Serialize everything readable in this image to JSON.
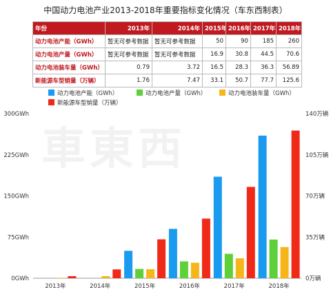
{
  "title": "中国动力电池产业2013-2018年重要指标变化情况（车东西制表）",
  "watermark": "車東西",
  "table": {
    "corner": "年份",
    "years": [
      "2013年",
      "2014年",
      "2015年",
      "2016年",
      "2017年",
      "2018年"
    ],
    "rows": [
      {
        "label": "动力电池产能（GWh）",
        "cells": [
          "暂无可参考数据",
          "暂无可参考数据",
          "50",
          "90",
          "185",
          "260"
        ]
      },
      {
        "label": "动力电池产量（GWh）",
        "cells": [
          "暂无可参考数据",
          "暂无可参考数据",
          "16.9",
          "30.8",
          "44.5",
          "70.6"
        ]
      },
      {
        "label": "动力电池装车量（GWh）",
        "cells": [
          "0.79",
          "3.72",
          "16.5",
          "28.3",
          "36.3",
          "56.89"
        ]
      },
      {
        "label": "新能源车型销量（万辆）",
        "cells": [
          "1.76",
          "7.47",
          "33.1",
          "50.7",
          "77.7",
          "125.6"
        ]
      }
    ]
  },
  "colors": {
    "blue": "#1a9bf0",
    "green": "#5fd03a",
    "orange": "#f6b61a",
    "red": "#f02a19",
    "header": "#c0191f"
  },
  "chart_data": {
    "type": "bar",
    "categories": [
      "2013年",
      "2014年",
      "2015年",
      "2016年",
      "2017年",
      "2018年"
    ],
    "series": [
      {
        "name": "动力电池产能（GWh）",
        "axis": "left",
        "color": "#1a9bf0",
        "values": [
          null,
          null,
          50,
          90,
          185,
          260
        ]
      },
      {
        "name": "动力电池产量（GWh）",
        "axis": "left",
        "color": "#5fd03a",
        "values": [
          null,
          null,
          16.9,
          30.8,
          44.5,
          70.6
        ]
      },
      {
        "name": "动力电池装车量（GWh）",
        "axis": "left",
        "color": "#f6b61a",
        "values": [
          0.79,
          3.72,
          16.5,
          28.3,
          36.3,
          56.89
        ]
      },
      {
        "name": "新能源车型销量（万辆）",
        "axis": "right",
        "color": "#f02a19",
        "values": [
          1.76,
          7.47,
          33.1,
          50.7,
          77.7,
          125.6
        ]
      }
    ],
    "y_left": {
      "ylim": [
        0,
        300
      ],
      "ticks": [
        0,
        75,
        150,
        225,
        300
      ],
      "tick_labels": [
        "0GWh",
        "75GWh",
        "150GWh",
        "225GWh",
        "300GWh"
      ]
    },
    "y_right": {
      "ylim": [
        0,
        140
      ],
      "ticks": [
        0,
        35,
        70,
        105,
        140
      ],
      "tick_labels": [
        "0万辆",
        "35万辆",
        "70万辆",
        "105万辆",
        "140万辆"
      ]
    },
    "grid": false,
    "legend": "top"
  }
}
